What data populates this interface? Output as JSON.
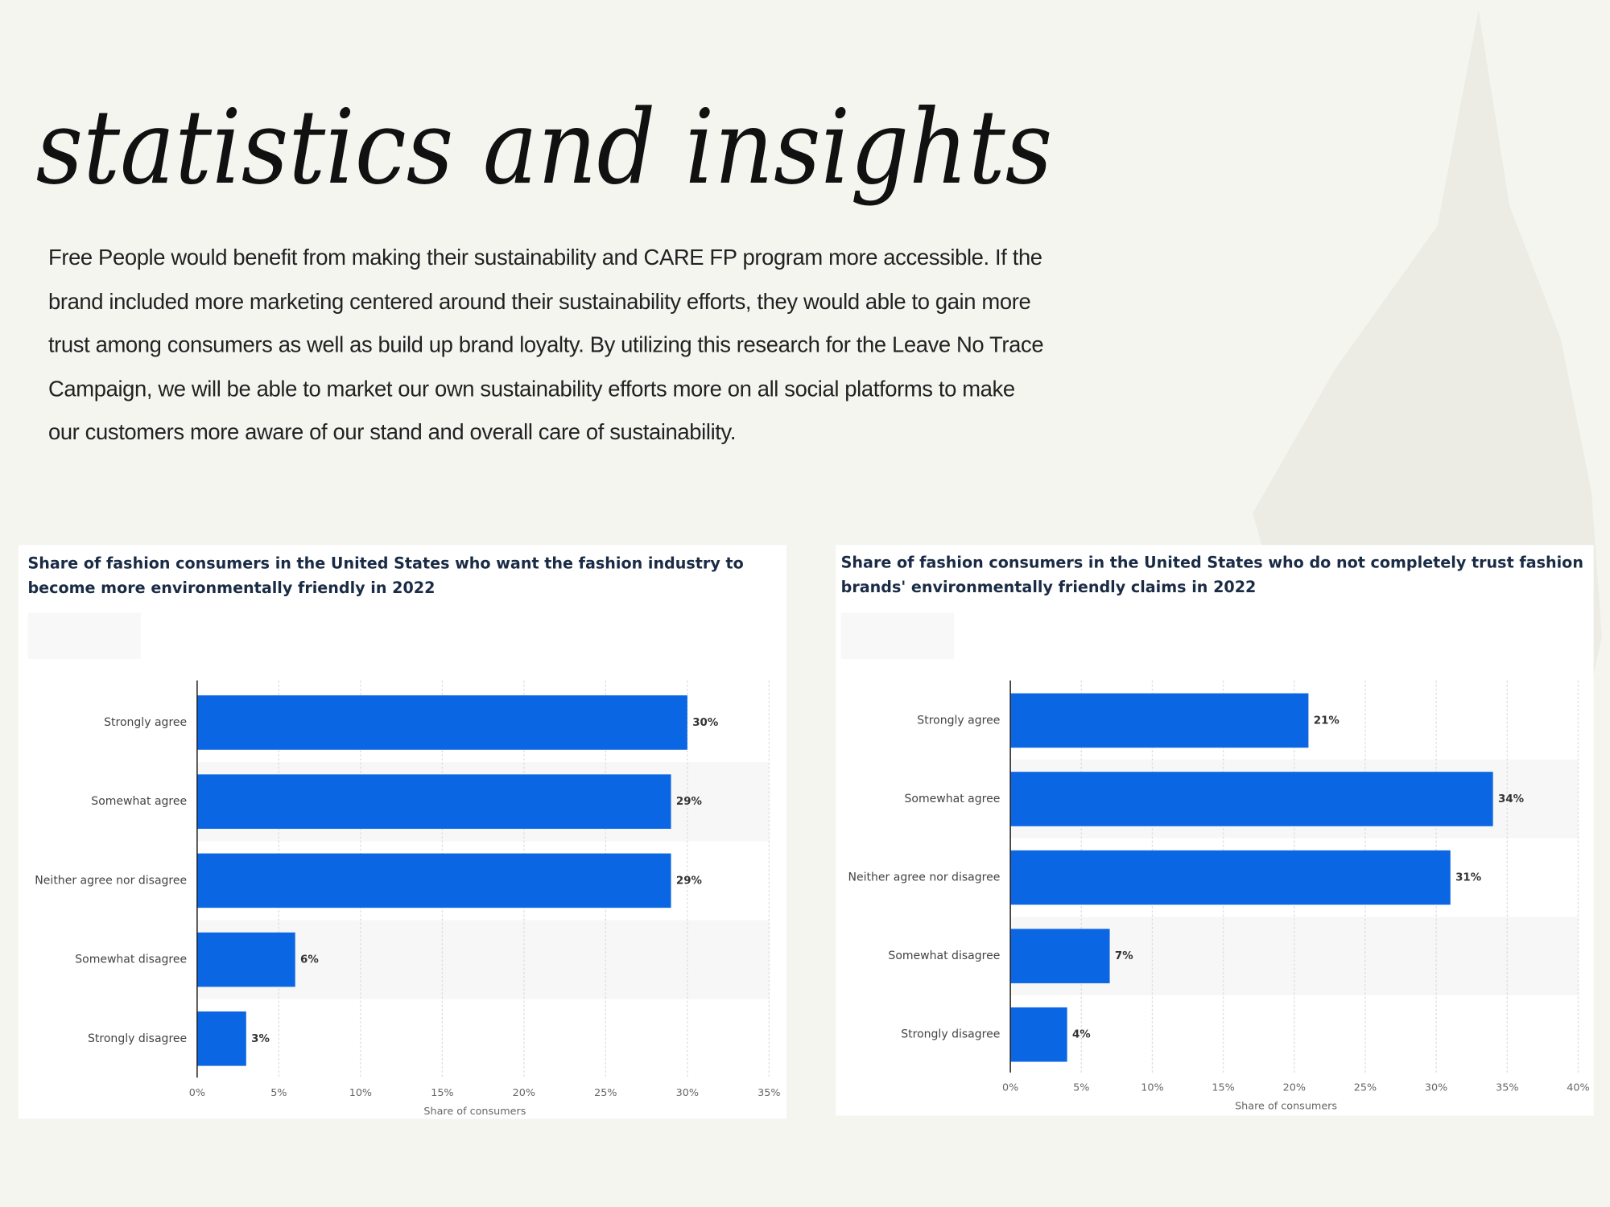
{
  "title": "statistics and insights",
  "paragraph": "Free People would benefit from making their sustainability and CARE FP program more accessible. If the brand included more marketing centered around their sustainability efforts, they would able to gain more trust among consumers as well as build up brand loyalty. By utilizing this research for the Leave No Trace Campaign, we will be able to market our own sustainability efforts more on all social platforms to make our customers more aware of our stand and overall care of sustainability.",
  "chart_data": [
    {
      "type": "bar",
      "orientation": "horizontal",
      "title": "Share of fashion consumers in the United States who want the fashion industry to become more environmentally friendly in 2022",
      "categories": [
        "Strongly agree",
        "Somewhat agree",
        "Neither agree nor disagree",
        "Somewhat disagree",
        "Strongly disagree"
      ],
      "values": [
        30,
        29,
        29,
        6,
        3
      ],
      "value_labels": [
        "30%",
        "29%",
        "29%",
        "6%",
        "3%"
      ],
      "color": "#0b66e4",
      "xlabel": "Share of consumers",
      "xlim": [
        0,
        35
      ],
      "xticks": [
        {
          "value": 0,
          "label": "0%"
        },
        {
          "value": 5,
          "label": "5%"
        },
        {
          "value": 10,
          "label": "10%"
        },
        {
          "value": 15,
          "label": "15%"
        },
        {
          "value": 20,
          "label": "20%"
        },
        {
          "value": 25,
          "label": "25%"
        },
        {
          "value": 30,
          "label": "30%"
        },
        {
          "value": 35,
          "label": "35%"
        }
      ],
      "grid": true
    },
    {
      "type": "bar",
      "orientation": "horizontal",
      "title": "Share of fashion consumers in the United States who do not completely trust fashion brands' environmentally friendly claims in 2022",
      "categories": [
        "Strongly agree",
        "Somewhat agree",
        "Neither agree nor disagree",
        "Somewhat disagree",
        "Strongly disagree"
      ],
      "values": [
        21,
        34,
        31,
        7,
        4
      ],
      "value_labels": [
        "21%",
        "34%",
        "31%",
        "7%",
        "4%"
      ],
      "color": "#0b66e4",
      "xlabel": "Share of consumers",
      "xlim": [
        0,
        40
      ],
      "xticks": [
        {
          "value": 0,
          "label": "0%"
        },
        {
          "value": 5,
          "label": "5%"
        },
        {
          "value": 10,
          "label": "10%"
        },
        {
          "value": 15,
          "label": "15%"
        },
        {
          "value": 20,
          "label": "20%"
        },
        {
          "value": 25,
          "label": "25%"
        },
        {
          "value": 30,
          "label": "30%"
        },
        {
          "value": 35,
          "label": "35%"
        },
        {
          "value": 40,
          "label": "40%"
        }
      ],
      "grid": true
    }
  ]
}
